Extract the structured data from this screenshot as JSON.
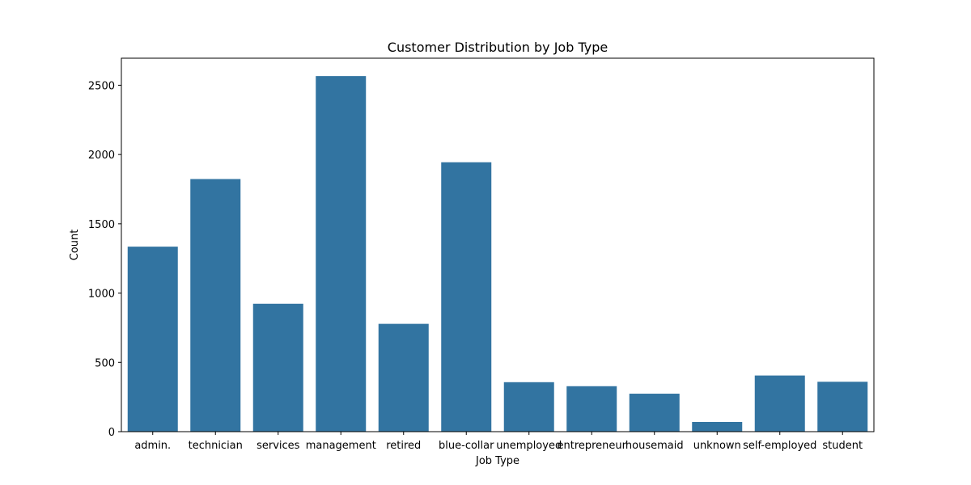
{
  "chart_data": {
    "type": "bar",
    "title": "Customer Distribution by Job Type",
    "xlabel": "Job Type",
    "ylabel": "Count",
    "categories": [
      "admin.",
      "technician",
      "services",
      "management",
      "retired",
      "blue-collar",
      "unemployed",
      "entrepreneur",
      "housemaid",
      "unknown",
      "self-employed",
      "student"
    ],
    "values": [
      1335,
      1823,
      923,
      2566,
      778,
      1944,
      357,
      328,
      274,
      70,
      405,
      360
    ],
    "ylim": [
      0,
      2695
    ],
    "yticks": [
      0,
      500,
      1000,
      1500,
      2000,
      2500
    ],
    "bar_color": "#3274a1",
    "grid": false,
    "legend": "none"
  }
}
